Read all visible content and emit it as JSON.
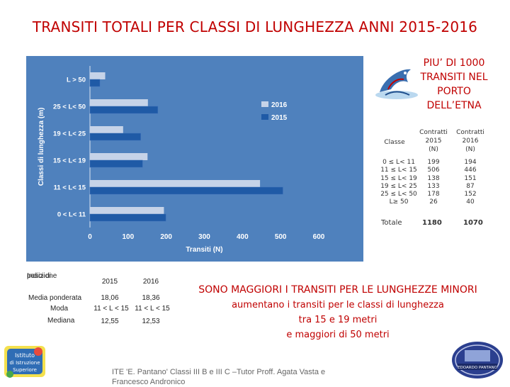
{
  "title": "TRANSITI TOTALI PER CLASSI DI LUNGHEZZA ANNI 2015-2016",
  "side_note": [
    "PIU’ DI 1000",
    "TRANSITI NEL",
    "PORTO",
    "DELL’ETNA"
  ],
  "chart_data": {
    "type": "bar",
    "orientation": "horizontal",
    "categories": [
      "0 < L< 11",
      "11 < L< 15",
      "15 < L< 19",
      "19 < L< 25",
      "25 < L< 50",
      "L > 50"
    ],
    "series": [
      {
        "name": "2015",
        "values": [
          199,
          506,
          138,
          133,
          178,
          26
        ],
        "color": "#4f81bd"
      },
      {
        "name": "2016",
        "values": [
          194,
          446,
          151,
          87,
          152,
          40
        ],
        "color": "#c6d3e8"
      }
    ],
    "xlabel": "Transiti (N)",
    "ylabel": "Classi di lunghezza (m)",
    "xlim": [
      0,
      600
    ],
    "xticks": [
      "0",
      "100",
      "200",
      "300",
      "400",
      "500",
      "600"
    ],
    "legend": [
      "2016",
      "2015"
    ],
    "legend_position": "right",
    "grid": false
  },
  "count_table": {
    "headers": [
      "Classe",
      "Contratti 2015 (N)",
      "Contratti 2016 (N)"
    ],
    "header_lines": {
      "c1": [
        "Contratti",
        "2015",
        "(N)"
      ],
      "c2": [
        "Contratti",
        "2016",
        "(N)"
      ]
    },
    "classes": [
      "0 ≤ L< 11",
      "11 ≤ L< 15",
      "15 ≤ L< 19",
      "19 ≤ L< 25",
      "25 ≤ L< 50",
      "L≥ 50"
    ],
    "values_2015": [
      "199",
      "506",
      "138",
      "133",
      "178",
      "26"
    ],
    "values_2016": [
      "194",
      "446",
      "151",
      "87",
      "152",
      "40"
    ],
    "total_label": "Totale",
    "total_2015": "1180",
    "total_2016": "1070"
  },
  "stats": {
    "header_label": [
      "Indici di",
      "posizione"
    ],
    "col_2015": "2015",
    "col_2016": "2016",
    "rows": [
      {
        "label": "Media ponderata",
        "v2015": "18,06",
        "v2016": "18,36"
      },
      {
        "label": "Moda",
        "v2015": "11 < L < 15",
        "v2016": "11 < L < 15"
      },
      {
        "label": "Mediana",
        "v2015": "12,55",
        "v2016": "12,53"
      }
    ]
  },
  "conclusion": {
    "line1": "SONO MAGGIORI I TRANSITI PER LE LUNGHEZZE MINORI",
    "line2": "aumentano i transiti per le classi di lunghezza",
    "line3": "tra 15 e 19 metri",
    "line4": "e maggiori di 50 metri"
  },
  "footer": [
    "ITE 'E. Pantano' Classi III B e III C –Tutor Proff. Agata Vasta e",
    "Francesco Andronico"
  ],
  "logos": {
    "left": [
      "Istituto",
      "di Istruzione",
      "Superiore"
    ],
    "right": [
      "EDOARDO PANTANO"
    ]
  }
}
